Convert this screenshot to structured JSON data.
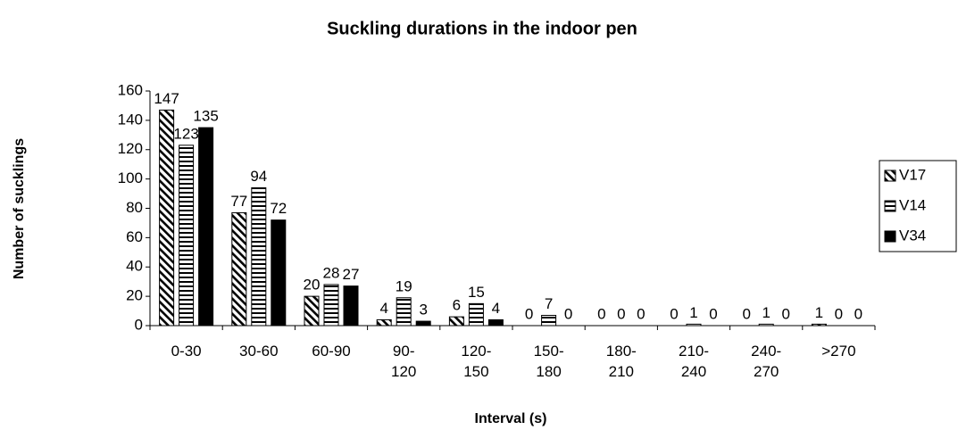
{
  "chart_data": {
    "type": "bar",
    "title": "Suckling durations in the indoor pen",
    "x_label": "Interval (s)",
    "y_label": "Number of sucklings",
    "categories": [
      "0-30",
      "30-60",
      "60-90",
      "90-120",
      "120-150",
      "150-180",
      "180-210",
      "210-240",
      "240-270",
      ">270"
    ],
    "series": [
      {
        "name": "V17",
        "color": "#000000",
        "pattern": "diagonal",
        "values": [
          147,
          77,
          20,
          4,
          6,
          0,
          0,
          0,
          0,
          1
        ]
      },
      {
        "name": "V14",
        "color": "#000000",
        "pattern": "horizontal",
        "values": [
          123,
          94,
          28,
          19,
          15,
          7,
          0,
          1,
          1,
          0
        ]
      },
      {
        "name": "V34",
        "color": "#000000",
        "pattern": "solid",
        "values": [
          135,
          72,
          27,
          3,
          4,
          0,
          0,
          0,
          0,
          0
        ]
      }
    ],
    "ylim": [
      0,
      160
    ],
    "yticks": [
      0,
      20,
      40,
      60,
      80,
      100,
      120,
      140,
      160
    ],
    "legend": "right",
    "grid": false
  }
}
